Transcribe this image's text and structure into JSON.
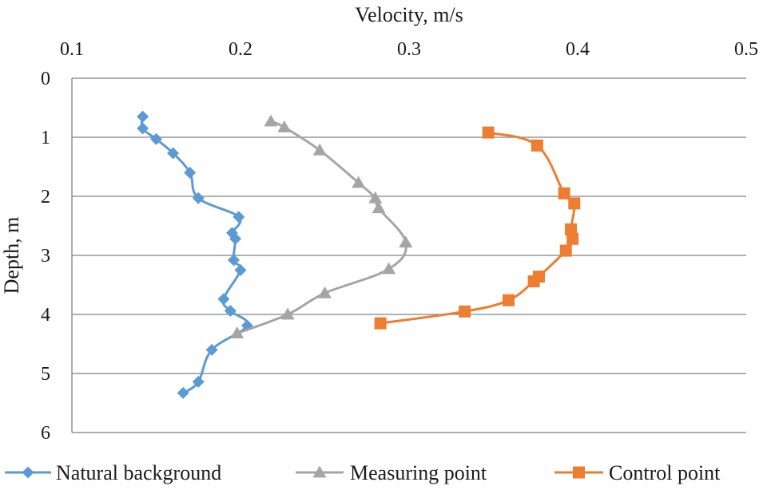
{
  "chart_data": {
    "type": "line",
    "orientation": "depth-profile",
    "xlabel": "Velocity, m/s",
    "ylabel": "Depth, m",
    "xlim": [
      0.1,
      0.5
    ],
    "ylim": [
      0,
      6
    ],
    "x_ticks": [
      "0.1",
      "0.2",
      "0.3",
      "0.4",
      "0.5"
    ],
    "y_ticks": [
      "0",
      "1",
      "2",
      "3",
      "4",
      "5",
      "6"
    ],
    "x_axis_position": "top",
    "y_axis_inverted": true,
    "grid": "horizontal",
    "legend_position": "bottom",
    "series": [
      {
        "name": "Natural background",
        "color": "#5b9bd5",
        "marker": "diamond",
        "points": [
          {
            "velocity": 0.142,
            "depth": 0.65
          },
          {
            "velocity": 0.142,
            "depth": 0.85
          },
          {
            "velocity": 0.15,
            "depth": 1.03
          },
          {
            "velocity": 0.16,
            "depth": 1.27
          },
          {
            "velocity": 0.17,
            "depth": 1.6
          },
          {
            "velocity": 0.175,
            "depth": 2.03
          },
          {
            "velocity": 0.199,
            "depth": 2.35
          },
          {
            "velocity": 0.195,
            "depth": 2.62
          },
          {
            "velocity": 0.197,
            "depth": 2.72
          },
          {
            "velocity": 0.196,
            "depth": 3.08
          },
          {
            "velocity": 0.2,
            "depth": 3.25
          },
          {
            "velocity": 0.19,
            "depth": 3.74
          },
          {
            "velocity": 0.194,
            "depth": 3.94
          },
          {
            "velocity": 0.204,
            "depth": 4.19
          },
          {
            "velocity": 0.183,
            "depth": 4.6
          },
          {
            "velocity": 0.175,
            "depth": 5.14
          },
          {
            "velocity": 0.166,
            "depth": 5.33
          }
        ]
      },
      {
        "name": "Measuring point",
        "color": "#a5a5a5",
        "marker": "triangle",
        "points": [
          {
            "velocity": 0.218,
            "depth": 0.73
          },
          {
            "velocity": 0.226,
            "depth": 0.83
          },
          {
            "velocity": 0.247,
            "depth": 1.22
          },
          {
            "velocity": 0.27,
            "depth": 1.77
          },
          {
            "velocity": 0.28,
            "depth": 2.03
          },
          {
            "velocity": 0.282,
            "depth": 2.2
          },
          {
            "velocity": 0.298,
            "depth": 2.78
          },
          {
            "velocity": 0.288,
            "depth": 3.23
          },
          {
            "velocity": 0.25,
            "depth": 3.64
          },
          {
            "velocity": 0.228,
            "depth": 4.0
          },
          {
            "velocity": 0.198,
            "depth": 4.32
          }
        ]
      },
      {
        "name": "Control point",
        "color": "#ed7d31",
        "marker": "square",
        "points": [
          {
            "velocity": 0.347,
            "depth": 0.92
          },
          {
            "velocity": 0.376,
            "depth": 1.14
          },
          {
            "velocity": 0.392,
            "depth": 1.95
          },
          {
            "velocity": 0.398,
            "depth": 2.12
          },
          {
            "velocity": 0.396,
            "depth": 2.56
          },
          {
            "velocity": 0.397,
            "depth": 2.72
          },
          {
            "velocity": 0.393,
            "depth": 2.92
          },
          {
            "velocity": 0.377,
            "depth": 3.36
          },
          {
            "velocity": 0.374,
            "depth": 3.44
          },
          {
            "velocity": 0.359,
            "depth": 3.76
          },
          {
            "velocity": 0.333,
            "depth": 3.95
          },
          {
            "velocity": 0.283,
            "depth": 4.15
          }
        ]
      }
    ]
  }
}
